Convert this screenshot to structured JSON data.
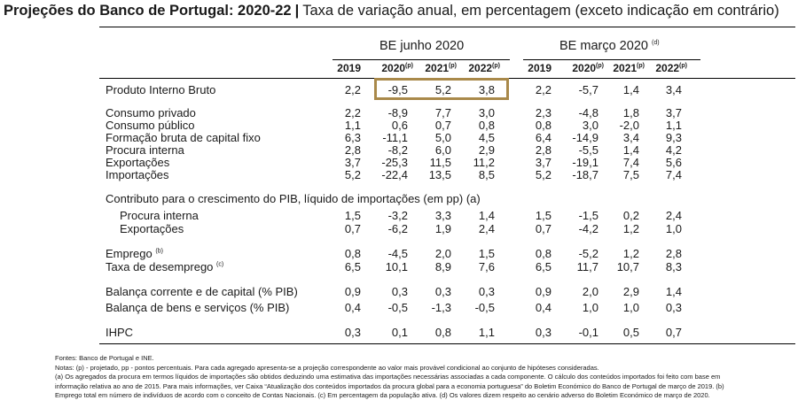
{
  "title": {
    "bold": "Projeções do Banco de Portugal: 2020-22",
    "separator": "|",
    "rest": "Taxa de variação anual, em percentagem (exceto indicação em contrário)"
  },
  "groups": {
    "june": "BE junho 2020",
    "march": "BE março 2020",
    "march_note": "(d)"
  },
  "years": [
    {
      "y": "2019",
      "s": ""
    },
    {
      "y": "2020",
      "s": "(p)"
    },
    {
      "y": "2021",
      "s": "(p)"
    },
    {
      "y": "2022",
      "s": "(p)"
    },
    {
      "y": "2019",
      "s": ""
    },
    {
      "y": "2020",
      "s": "(p)"
    },
    {
      "y": "2021",
      "s": "(p)"
    },
    {
      "y": "2022",
      "s": "(p)"
    }
  ],
  "rows": [
    {
      "label": "Produto Interno Bruto",
      "note": "",
      "values": [
        "2,2",
        "-9,5",
        "5,2",
        "3,8",
        "2,2",
        "-5,7",
        "1,4",
        "3,4"
      ]
    },
    {
      "label": "Consumo privado",
      "note": "",
      "values": [
        "2,2",
        "-8,9",
        "7,7",
        "3,0",
        "2,3",
        "-4,8",
        "1,8",
        "3,7"
      ]
    },
    {
      "label": "Consumo público",
      "note": "",
      "values": [
        "1,1",
        "0,6",
        "0,7",
        "0,8",
        "0,8",
        "3,0",
        "-2,0",
        "1,1"
      ]
    },
    {
      "label": "Formação bruta de capital fixo",
      "note": "",
      "values": [
        "6,3",
        "-11,1",
        "5,0",
        "4,5",
        "6,4",
        "-14,9",
        "3,4",
        "9,3"
      ]
    },
    {
      "label": "Procura interna",
      "note": "",
      "values": [
        "2,8",
        "-8,2",
        "6,0",
        "2,9",
        "2,8",
        "-5,5",
        "1,4",
        "4,2"
      ]
    },
    {
      "label": "Exportações",
      "note": "",
      "values": [
        "3,7",
        "-25,3",
        "11,5",
        "11,2",
        "3,7",
        "-19,1",
        "7,4",
        "5,6"
      ]
    },
    {
      "label": "Importações",
      "note": "",
      "values": [
        "5,2",
        "-22,4",
        "13,5",
        "8,5",
        "5,2",
        "-18,7",
        "7,5",
        "7,4"
      ]
    },
    {
      "label": "Contributo para o crescimento do PIB, líquido de importações (em pp) (a)",
      "note": "",
      "values": []
    },
    {
      "label": "Procura interna",
      "note": "",
      "values": [
        "1,5",
        "-3,2",
        "3,3",
        "1,4",
        "1,5",
        "-1,5",
        "0,2",
        "2,4"
      ]
    },
    {
      "label": "Exportações",
      "note": "",
      "values": [
        "0,7",
        "-6,2",
        "1,9",
        "2,4",
        "0,7",
        "-4,2",
        "1,2",
        "1,0"
      ]
    },
    {
      "label": "Emprego",
      "note": "(b)",
      "values": [
        "0,8",
        "-4,5",
        "2,0",
        "1,5",
        "0,8",
        "-5,2",
        "1,2",
        "2,8"
      ]
    },
    {
      "label": "Taxa de desemprego",
      "note": "(c)",
      "values": [
        "6,5",
        "10,1",
        "8,9",
        "7,6",
        "6,5",
        "11,7",
        "10,7",
        "8,3"
      ]
    },
    {
      "label": "Balança corrente e de capital (% PIB)",
      "note": "",
      "values": [
        "0,9",
        "0,3",
        "0,3",
        "0,3",
        "0,9",
        "2,0",
        "2,9",
        "1,4"
      ]
    },
    {
      "label": "Balança de bens e serviços (% PIB)",
      "note": "",
      "values": [
        "0,4",
        "-0,5",
        "-1,3",
        "-0,5",
        "0,4",
        "1,0",
        "1,0",
        "0,3"
      ]
    },
    {
      "label": "IHPC",
      "note": "",
      "values": [
        "0,3",
        "0,1",
        "0,8",
        "1,1",
        "0,3",
        "-0,1",
        "0,5",
        "0,7"
      ]
    }
  ],
  "notes": [
    "Fontes: Banco de Portugal e INE.",
    "Notas: (p) - projetado, pp - pontos percentuais. Para cada agregado apresenta-se a projeção correspondente ao valor mais provável condicional ao conjunto de hipóteses consideradas.",
    "(a) Os agregados da procura em termos líquidos de importações são obtidos deduzindo uma estimativa das importações necessárias associadas a cada componente. O cálculo dos conteúdos importados foi feito com base em",
    "informação relativa ao ano de 2015. Para mais informações, ver Caixa “Atualização dos conteúdos importados da procura global para a economia portuguesa” do Boletim Económico do Banco de Portugal de março de 2019. (b)",
    "Emprego total em número de indivíduos de acordo com o conceito de Contas Nacionais. (c) Em percentagem da população ativa. (d) Os valores dizem respeito ao cenário adverso do Boletim Económico de março de 2020."
  ]
}
